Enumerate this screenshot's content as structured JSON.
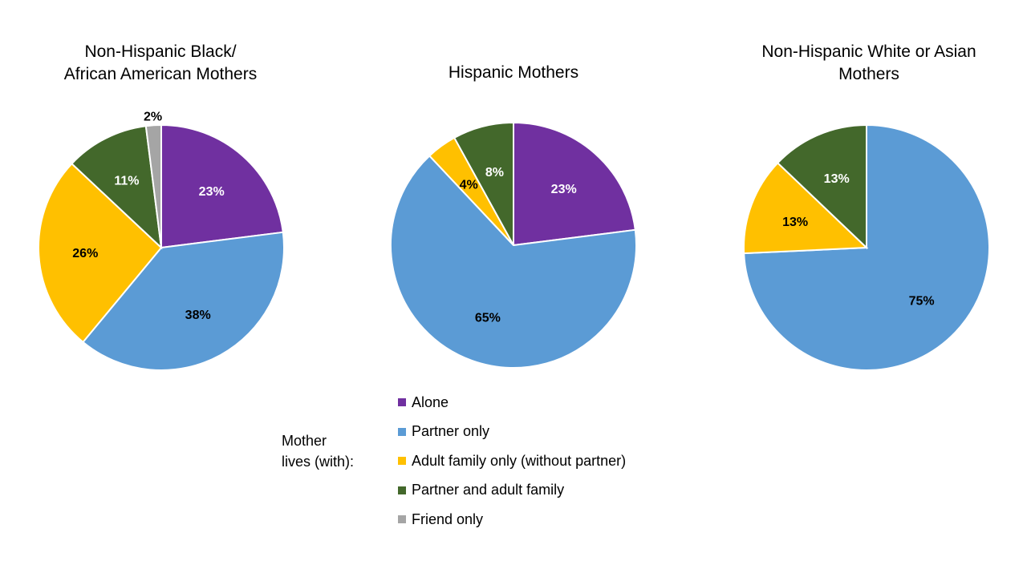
{
  "legend_caption": "Mother\nlives (with):",
  "colors": {
    "Alone": "#7030a0",
    "Partner only": "#5b9bd5",
    "Adult family only (without partner)": "#ffc000",
    "Partner and adult family": "#43682b",
    "Friend only": "#a5a5a5"
  },
  "chart_data": [
    {
      "type": "pie",
      "title": "Non-Hispanic Black/\nAfrican American Mothers",
      "categories": [
        "Alone",
        "Partner only",
        "Adult family only (without partner)",
        "Partner and adult family",
        "Friend only"
      ],
      "values": [
        23,
        38,
        26,
        11,
        2
      ],
      "labels": [
        "23%",
        "38%",
        "26%",
        "11%",
        "2%"
      ]
    },
    {
      "type": "pie",
      "title": "Hispanic Mothers",
      "categories": [
        "Alone",
        "Partner only",
        "Adult family only (without partner)",
        "Partner and adult family"
      ],
      "values": [
        23,
        65,
        4,
        8
      ],
      "labels": [
        "23%",
        "65%",
        "4%",
        "8%"
      ]
    },
    {
      "type": "pie",
      "title": "Non-Hispanic White or Asian\nMothers",
      "categories": [
        "Partner only",
        "Adult family only (without partner)",
        "Partner and adult family"
      ],
      "values": [
        75,
        13,
        13
      ],
      "labels": [
        "75%",
        "13%",
        "13%"
      ]
    }
  ],
  "legend": [
    "Alone",
    "Partner only",
    "Adult family only (without partner)",
    "Partner and adult family",
    "Friend only"
  ]
}
